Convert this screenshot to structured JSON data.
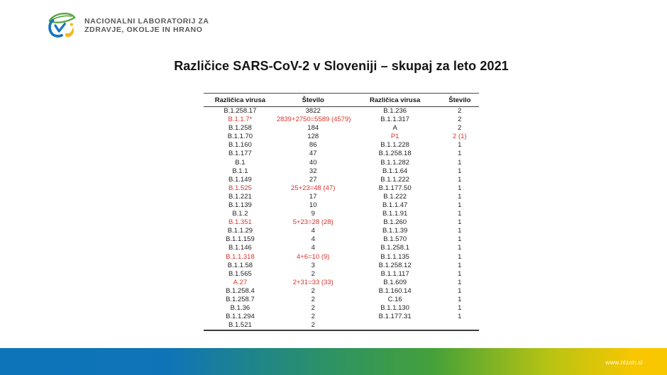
{
  "logo": {
    "line1": "NACIONALNI LABORATORIJ ZA",
    "line2": "ZDRAVJE, OKOLJE IN HRANO"
  },
  "title": "Različice SARS-CoV-2 v Sloveniji – skupaj za leto 2021",
  "table": {
    "headers": [
      "Različica virusa",
      "Število",
      "Različica virusa",
      "Število"
    ],
    "rows": [
      {
        "v1": "B.1.258.17",
        "n1": "3822",
        "red1": false,
        "v2": "B.1.236",
        "n2": "2",
        "red2": false
      },
      {
        "v1": "B.1.1.7*",
        "n1": "2839+2750=5589 (4579)",
        "red1": true,
        "v2": "B.1.1.317",
        "n2": "2",
        "red2": false
      },
      {
        "v1": "B.1.258",
        "n1": "184",
        "red1": false,
        "v2": "A",
        "n2": "2",
        "red2": false
      },
      {
        "v1": "B.1.1.70",
        "n1": "128",
        "red1": false,
        "v2": "P1",
        "n2": "2 (1)",
        "red2": true
      },
      {
        "v1": "B.1.160",
        "n1": "86",
        "red1": false,
        "v2": "B.1.1.228",
        "n2": "1",
        "red2": false
      },
      {
        "v1": "B.1.177",
        "n1": "47",
        "red1": false,
        "v2": "B.1.258.18",
        "n2": "1",
        "red2": false
      },
      {
        "v1": "B.1",
        "n1": "40",
        "red1": false,
        "v2": "B.1.1.282",
        "n2": "1",
        "red2": false
      },
      {
        "v1": "B.1.1",
        "n1": "32",
        "red1": false,
        "v2": "B.1.1.64",
        "n2": "1",
        "red2": false
      },
      {
        "v1": "B.1.149",
        "n1": "27",
        "red1": false,
        "v2": "B.1.1.222",
        "n2": "1",
        "red2": false
      },
      {
        "v1": "B.1.525",
        "n1": "25+23=48 (47)",
        "red1": true,
        "v2": "B.1.177.50",
        "n2": "1",
        "red2": false
      },
      {
        "v1": "B.1.221",
        "n1": "17",
        "red1": false,
        "v2": "B.1.222",
        "n2": "1",
        "red2": false
      },
      {
        "v1": "B.1.139",
        "n1": "10",
        "red1": false,
        "v2": "B.1.1.47",
        "n2": "1",
        "red2": false
      },
      {
        "v1": "B.1.2",
        "n1": "9",
        "red1": false,
        "v2": "B.1.1.91",
        "n2": "1",
        "red2": false
      },
      {
        "v1": "B.1.351",
        "n1": "5+23=28 (28)",
        "red1": true,
        "v2": "B.1.260",
        "n2": "1",
        "red2": false
      },
      {
        "v1": "B.1.1.29",
        "n1": "4",
        "red1": false,
        "v2": "B.1.1.39",
        "n2": "1",
        "red2": false
      },
      {
        "v1": "B.1.1.159",
        "n1": "4",
        "red1": false,
        "v2": "B.1.570",
        "n2": "1",
        "red2": false
      },
      {
        "v1": "B.1.146",
        "n1": "4",
        "red1": false,
        "v2": "B.1.258.1",
        "n2": "1",
        "red2": false
      },
      {
        "v1": "B.1.1.318",
        "n1": "4+6=10 (9)",
        "red1": true,
        "v2": "B.1.1.135",
        "n2": "1",
        "red2": false
      },
      {
        "v1": "B.1.1.58",
        "n1": "3",
        "red1": false,
        "v2": "B.1.258.12",
        "n2": "1",
        "red2": false
      },
      {
        "v1": "B.1.565",
        "n1": "2",
        "red1": false,
        "v2": "B.1.1.117",
        "n2": "1",
        "red2": false
      },
      {
        "v1": "A.27",
        "n1": "2+31=33 (33)",
        "red1": true,
        "v2": "B.1.609",
        "n2": "1",
        "red2": false
      },
      {
        "v1": "B.1.258.4",
        "n1": "2",
        "red1": false,
        "v2": "B.1.160.14",
        "n2": "1",
        "red2": false
      },
      {
        "v1": "B.1.258.7",
        "n1": "2",
        "red1": false,
        "v2": "C.16",
        "n2": "1",
        "red2": false
      },
      {
        "v1": "B.1.36",
        "n1": "2",
        "red1": false,
        "v2": "B.1.1.130",
        "n2": "1",
        "red2": false
      },
      {
        "v1": "B.1.1.294",
        "n1": "2",
        "red1": false,
        "v2": "B.1.177.31",
        "n2": "1",
        "red2": false
      },
      {
        "v1": "B.1.521",
        "n1": "2",
        "red1": false,
        "v2": "",
        "n2": "",
        "red2": false
      }
    ]
  },
  "footer": {
    "url": "www.nlzoh.si",
    "gradient": [
      "#0e74ba 0%",
      "#0f74b7 25%",
      "#2b9168 48%",
      "#45a139 65%",
      "#b5c313 82%",
      "#f8c701 95%",
      "#f8c701 100%"
    ]
  },
  "colors": {
    "red": "#d9332c",
    "text": "#1f1f1f",
    "logo_blue": "#1b75bc",
    "logo_green": "#57a23c",
    "logo_yellow": "#f2b818"
  }
}
